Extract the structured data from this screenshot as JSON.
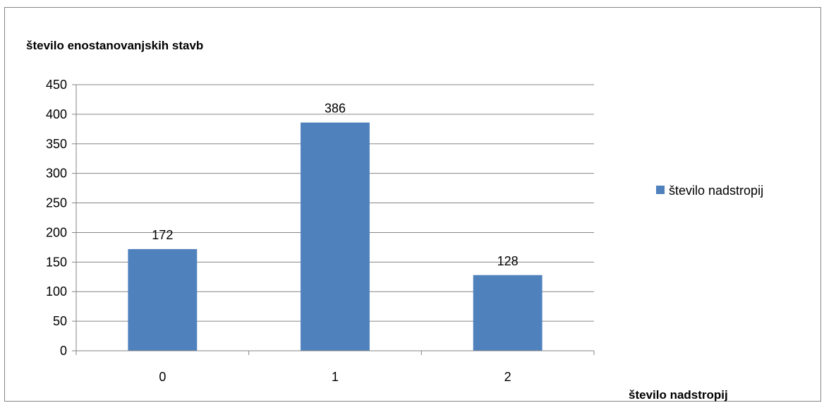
{
  "chart_data": {
    "type": "bar",
    "ylabel": "število enostanovanjskih stavb",
    "xlabel": "število nadstropij",
    "categories": [
      "0",
      "1",
      "2"
    ],
    "series": [
      {
        "name": "število nadstropij",
        "values": [
          172,
          386,
          128
        ],
        "color": "#4f81bd"
      }
    ],
    "ylim": [
      0,
      450
    ],
    "yticks": [
      0,
      50,
      100,
      150,
      200,
      250,
      300,
      350,
      400,
      450
    ],
    "grid": true,
    "data_labels": true,
    "legend_position": "right"
  }
}
